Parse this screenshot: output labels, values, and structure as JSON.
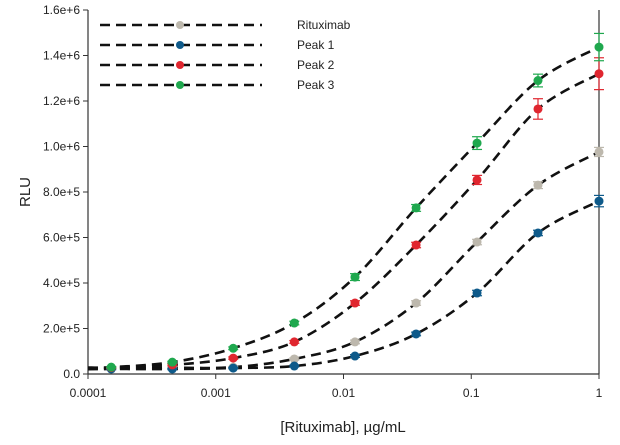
{
  "chart_data": {
    "type": "scatter",
    "title": "",
    "xlabel": "[Rituximab], µg/mL",
    "ylabel": "RLU",
    "xscale": "log",
    "xlim": [
      0.0001,
      1
    ],
    "ylim": [
      0,
      1600000
    ],
    "xticks": [
      0.0001,
      0.001,
      0.01,
      0.1,
      1
    ],
    "xtick_labels": [
      "0.0001",
      "0.001",
      "0.01",
      "0.1",
      "1"
    ],
    "yticks": [
      0,
      200000,
      400000,
      600000,
      800000,
      1000000,
      1200000,
      1400000,
      1600000
    ],
    "ytick_labels": [
      "0.0",
      "2.0e+5",
      "4.0e+5",
      "6.0e+5",
      "8.0e+5",
      "1.0e+6",
      "1.2e+6",
      "1.4e+6",
      "1.6e+6"
    ],
    "grid": false,
    "legend_placement": "top-left",
    "fit_line_style": "black dashed",
    "x": [
      0.000152,
      0.000457,
      0.00137,
      0.00412,
      0.0123,
      0.037,
      0.111,
      0.333,
      1
    ],
    "series": [
      {
        "name": "Rituximab",
        "color": "#bdb8ad",
        "values": [
          25000,
          27000,
          30000,
          66000,
          141000,
          312000,
          580000,
          830000,
          976000
        ],
        "yerr": [
          3000,
          3000,
          3000,
          5000,
          8000,
          10000,
          12000,
          15000,
          20000
        ]
      },
      {
        "name": "Peak 1",
        "color": "#0e5a8a",
        "values": [
          22000,
          22000,
          26000,
          35000,
          79000,
          176000,
          356000,
          620000,
          760000
        ],
        "yerr": [
          3000,
          3000,
          3000,
          4000,
          6000,
          8000,
          12000,
          12000,
          25000
        ]
      },
      {
        "name": "Peak 2",
        "color": "#e0262f",
        "values": [
          28000,
          40000,
          70000,
          141000,
          312000,
          567000,
          853000,
          1165000,
          1320000
        ],
        "yerr": [
          3000,
          4000,
          5000,
          6000,
          10000,
          12000,
          20000,
          45000,
          70000
        ]
      },
      {
        "name": "Peak 3",
        "color": "#1fa84e",
        "values": [
          30000,
          52000,
          113000,
          224000,
          426000,
          730000,
          1015000,
          1290000,
          1437000
        ],
        "yerr": [
          3000,
          4000,
          6000,
          8000,
          15000,
          15000,
          28000,
          28000,
          60000
        ]
      }
    ]
  }
}
